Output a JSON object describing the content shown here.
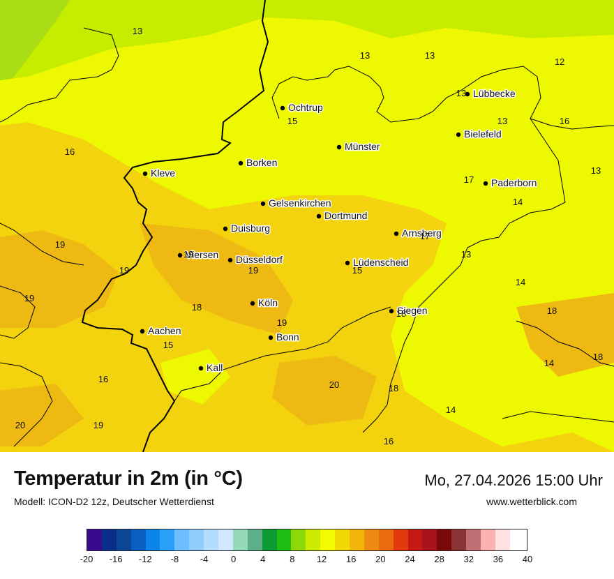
{
  "title": "Temperatur in 2m (in °C)",
  "subtitle": "Modell: ICON-D2 12z, Deutscher Wetterdienst",
  "datetime": "Mo, 27.04.2026 15:00 Uhr",
  "website": "www.wetterblick.com",
  "cities": [
    {
      "name": "Ochtrup"
    },
    {
      "name": "Lübbecke"
    },
    {
      "name": "Bielefeld"
    },
    {
      "name": "Münster"
    },
    {
      "name": "Borken"
    },
    {
      "name": "Kleve"
    },
    {
      "name": "Paderborn"
    },
    {
      "name": "Gelsenkirchen"
    },
    {
      "name": "Dortmund"
    },
    {
      "name": "Duisburg"
    },
    {
      "name": "Arnsberg"
    },
    {
      "name": "Viersen"
    },
    {
      "name": "Düsseldorf"
    },
    {
      "name": "Lüdenscheid"
    },
    {
      "name": "Köln"
    },
    {
      "name": "Siegen"
    },
    {
      "name": "Aachen"
    },
    {
      "name": "Bonn"
    },
    {
      "name": "Kall"
    }
  ],
  "temperature_values": [
    "13",
    "13",
    "13",
    "12",
    "13",
    "16",
    "15",
    "13",
    "16",
    "13",
    "17",
    "14",
    "17",
    "19",
    "19",
    "19",
    "19",
    "13",
    "14",
    "19",
    "18",
    "18",
    "19",
    "15",
    "18",
    "14",
    "18",
    "16",
    "15",
    "20",
    "18",
    "14",
    "20",
    "19",
    "16"
  ],
  "legend": {
    "unit": "°C",
    "ticks": [
      "-20",
      "-16",
      "-12",
      "-8",
      "-4",
      "0",
      "4",
      "8",
      "12",
      "16",
      "20",
      "24",
      "28",
      "32",
      "36",
      "40"
    ],
    "colors": [
      "#3a0a8c",
      "#0a2f8a",
      "#0a4596",
      "#0a5ec2",
      "#0a84e6",
      "#2aa0fa",
      "#6cbcff",
      "#92ccff",
      "#b4dcff",
      "#d2e8ff",
      "#94d9b8",
      "#5eb08a",
      "#0c9a34",
      "#1fbf16",
      "#8ed80a",
      "#cdeb00",
      "#f4fb00",
      "#f3d808",
      "#f2b70a",
      "#ee8c12",
      "#ea6a10",
      "#e23a0c",
      "#c31a14",
      "#a8121a",
      "#7a0a0a",
      "#8a3434",
      "#c07074",
      "#fab2b2",
      "#ffe1e1"
    ],
    "min": -20,
    "max": 40,
    "step": 2
  },
  "map_colors": {
    "green_yellow": "#c6ec00",
    "light_green": "#a8dc14",
    "yellow": "#eef800",
    "gold": "#f2d30e",
    "orange": "#efb914"
  }
}
